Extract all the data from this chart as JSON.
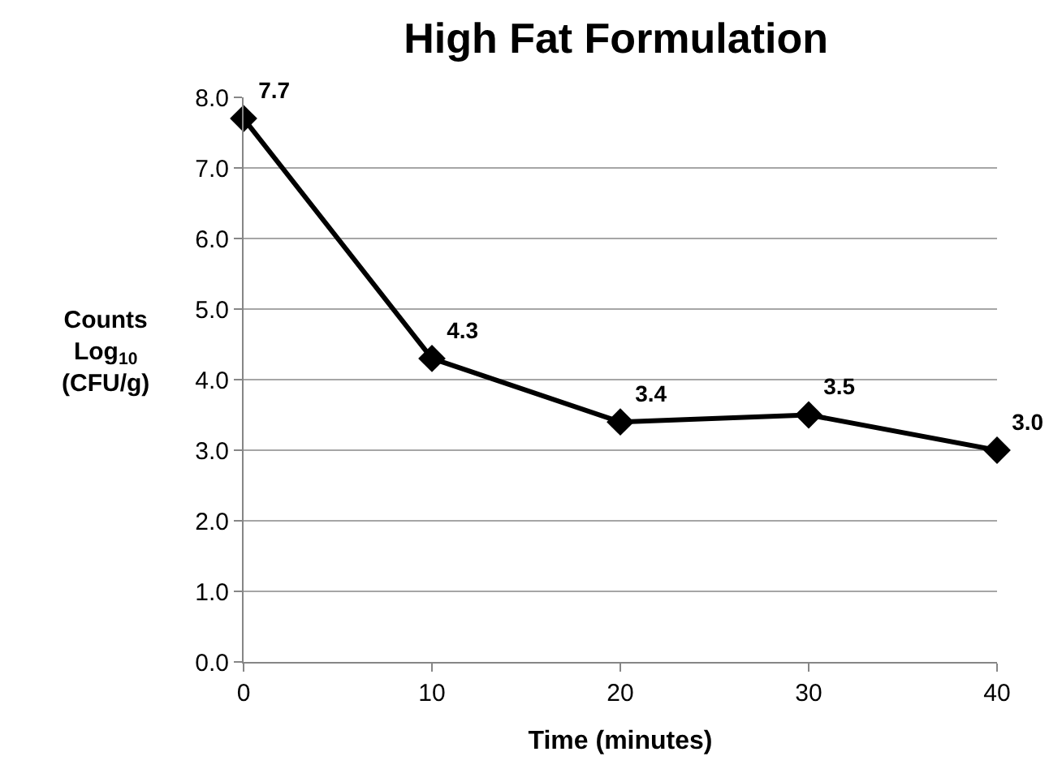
{
  "chart_data": {
    "type": "line",
    "title": "High Fat Formulation",
    "xlabel": "Time (minutes)",
    "ylabel": "Counts\nLog$_{10}$\n(CFU/g)",
    "x": [
      0,
      10,
      20,
      30,
      40
    ],
    "series": [
      {
        "color": "#000000",
        "values": [
          7.7,
          4.3,
          3.4,
          3.5,
          3.0
        ],
        "value_labels": [
          "7.7",
          "4.3",
          "3.4",
          "3.5",
          "3.0"
        ]
      }
    ],
    "xlim": [
      0,
      40
    ],
    "xticks": [
      0,
      10,
      20,
      30,
      40
    ],
    "ylim": [
      0,
      8
    ],
    "yticks": [
      {
        "value": 0,
        "label": "0.0"
      },
      {
        "value": 1,
        "label": "1.0"
      },
      {
        "value": 2,
        "label": "2.0"
      },
      {
        "value": 3,
        "label": "3.0"
      },
      {
        "value": 4,
        "label": "4.0"
      },
      {
        "value": 5,
        "label": "5.0"
      },
      {
        "value": 6,
        "label": "6.0"
      },
      {
        "value": 7,
        "label": "7.0"
      },
      {
        "value": 8,
        "label": "8.0"
      }
    ],
    "grid": "y",
    "marker": "diamond",
    "line_style": "solid",
    "legend": false
  }
}
